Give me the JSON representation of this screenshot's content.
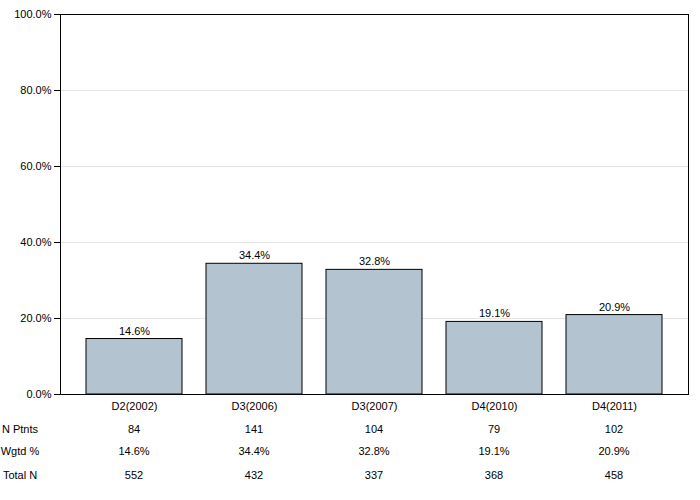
{
  "chart_data": {
    "type": "bar",
    "categories": [
      "D2(2002)",
      "D3(2006)",
      "D3(2007)",
      "D4(2010)",
      "D4(2011)"
    ],
    "values": [
      14.6,
      34.4,
      32.8,
      19.1,
      20.9
    ],
    "value_labels": [
      "14.6%",
      "34.4%",
      "32.8%",
      "19.1%",
      "20.9%"
    ],
    "data_labels": true,
    "color": "#b4c3d0",
    "ylim": [
      0,
      100
    ],
    "yticks": [
      {
        "value": 0,
        "label": "0.0%"
      },
      {
        "value": 20,
        "label": "20.0%"
      },
      {
        "value": 40,
        "label": "40.0%"
      },
      {
        "value": 60,
        "label": "60.0%"
      },
      {
        "value": 80,
        "label": "80.0%"
      },
      {
        "value": 100,
        "label": "100.0%"
      }
    ],
    "grid": true,
    "table": {
      "rows": [
        {
          "label": "N Ptnts",
          "values": [
            "84",
            "141",
            "104",
            "79",
            "102"
          ]
        },
        {
          "label": "Wgtd %",
          "values": [
            "14.6%",
            "34.4%",
            "32.8%",
            "19.1%",
            "20.9%"
          ]
        },
        {
          "label": "Total N",
          "values": [
            "552",
            "432",
            "337",
            "368",
            "458"
          ]
        }
      ]
    }
  }
}
